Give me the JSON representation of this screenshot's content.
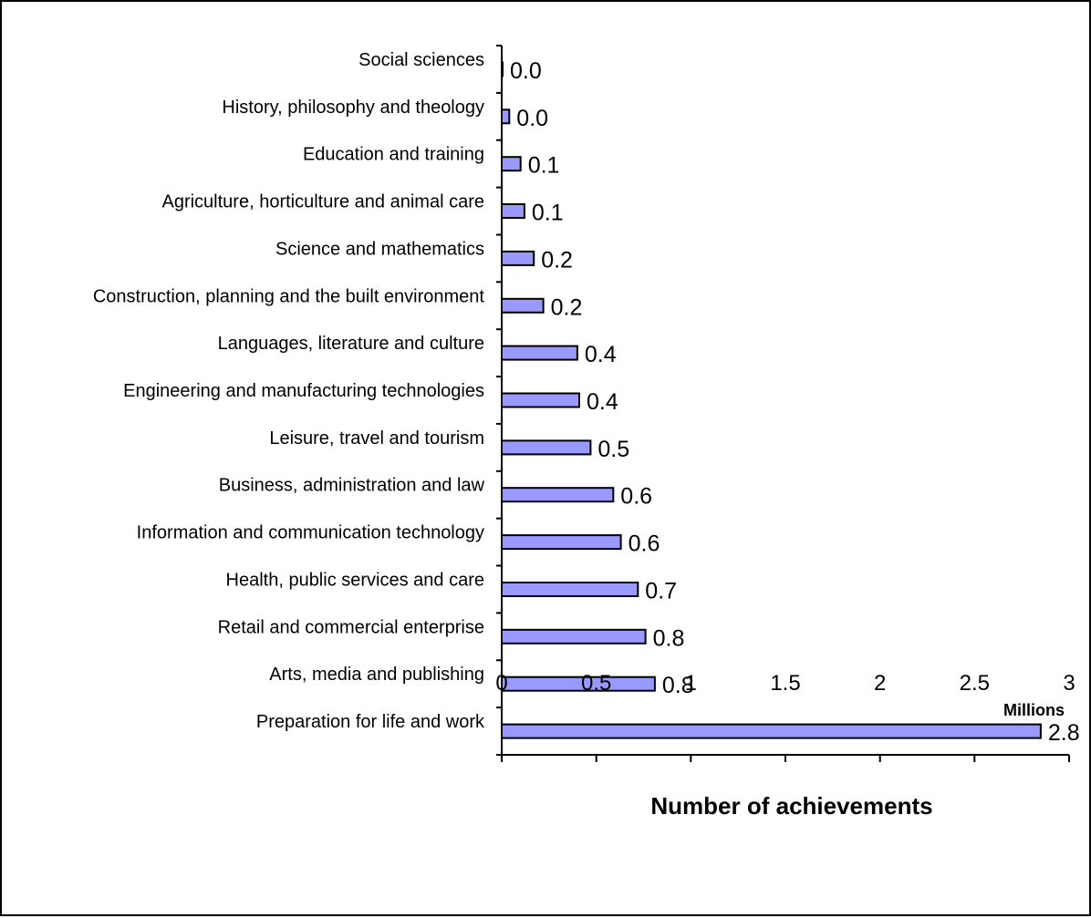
{
  "chart_data": {
    "type": "bar",
    "orientation": "horizontal",
    "categories": [
      "Social sciences",
      "History, philosophy and theology",
      "Education and training",
      "Agriculture, horticulture and animal care",
      "Science and mathematics",
      "Construction, planning and the built environment",
      "Languages, literature and culture",
      "Engineering and manufacturing technologies",
      "Leisure, travel and tourism",
      "Business, administration and law",
      "Information and communication technology",
      "Health, public services and care",
      "Retail and commercial enterprise",
      "Arts, media and publishing",
      "Preparation for life and work"
    ],
    "values": [
      0.005,
      0.04,
      0.1,
      0.12,
      0.17,
      0.22,
      0.4,
      0.41,
      0.47,
      0.59,
      0.63,
      0.72,
      0.76,
      0.81,
      2.85
    ],
    "data_labels": [
      "0.0",
      "0.0",
      "0.1",
      "0.1",
      "0.2",
      "0.2",
      "0.4",
      "0.4",
      "0.5",
      "0.6",
      "0.6",
      "0.7",
      "0.8",
      "0.8",
      "2.8"
    ],
    "xlim": [
      0,
      3
    ],
    "xticks": [
      0,
      0.5,
      1,
      1.5,
      2,
      2.5,
      3
    ],
    "xtick_labels": [
      "0",
      "0.5",
      "1",
      "1.5",
      "2",
      "2.5",
      "3"
    ],
    "axis_unit": "Millions",
    "xlabel": "Number of achievements",
    "title": "",
    "grid": false,
    "legend": "none",
    "bar_color": "#9999ff",
    "bar_edge_color": "#000000"
  }
}
